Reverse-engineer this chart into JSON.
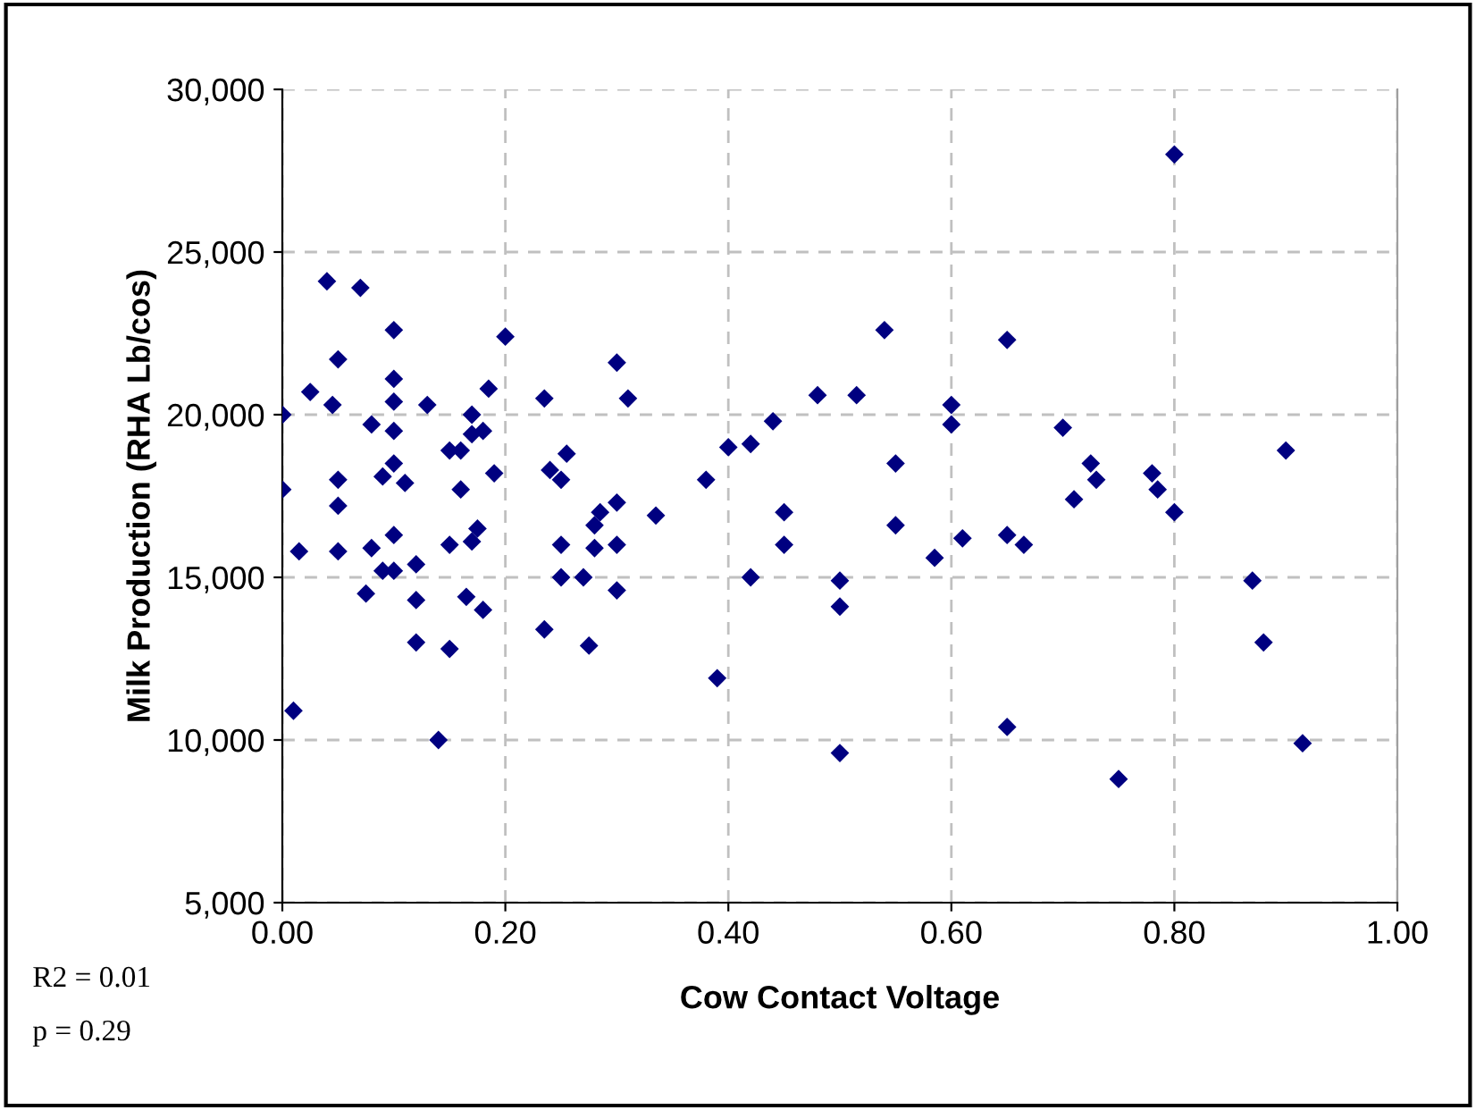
{
  "chart_data": {
    "type": "scatter",
    "xlabel": "Cow Contact Voltage",
    "ylabel": "Milk Production (RHA Lb/cos)",
    "annotations": [
      "R2 = 0.01",
      "p = 0.29"
    ],
    "marker": "diamond",
    "grid": true,
    "legend": false,
    "xlim": [
      0,
      1
    ],
    "ylim": [
      5000,
      30000
    ],
    "xticks": [
      {
        "value": 0,
        "label": "0.00"
      },
      {
        "value": 0.2,
        "label": "0.20"
      },
      {
        "value": 0.4,
        "label": "0.40"
      },
      {
        "value": 0.6,
        "label": "0.60"
      },
      {
        "value": 0.8,
        "label": "0.80"
      },
      {
        "value": 1,
        "label": "1.00"
      }
    ],
    "yticks": [
      {
        "value": 5000,
        "label": "5,000"
      },
      {
        "value": 10000,
        "label": "10,000"
      },
      {
        "value": 15000,
        "label": "15,000"
      },
      {
        "value": 20000,
        "label": "20,000"
      },
      {
        "value": 25000,
        "label": "25,000"
      },
      {
        "value": 30000,
        "label": "30,000"
      }
    ],
    "series": [
      {
        "color": "#000080",
        "x": [
          0.0,
          0.0,
          0.01,
          0.015,
          0.025,
          0.04,
          0.045,
          0.05,
          0.05,
          0.05,
          0.05,
          0.07,
          0.075,
          0.08,
          0.08,
          0.09,
          0.09,
          0.1,
          0.1,
          0.1,
          0.1,
          0.1,
          0.1,
          0.1,
          0.11,
          0.12,
          0.12,
          0.12,
          0.13,
          0.14,
          0.15,
          0.15,
          0.15,
          0.16,
          0.16,
          0.165,
          0.17,
          0.17,
          0.17,
          0.175,
          0.18,
          0.18,
          0.185,
          0.19,
          0.2,
          0.235,
          0.235,
          0.24,
          0.25,
          0.25,
          0.25,
          0.255,
          0.27,
          0.275,
          0.28,
          0.28,
          0.285,
          0.3,
          0.3,
          0.3,
          0.3,
          0.31,
          0.335,
          0.38,
          0.39,
          0.4,
          0.42,
          0.42,
          0.44,
          0.45,
          0.45,
          0.48,
          0.5,
          0.5,
          0.5,
          0.515,
          0.54,
          0.55,
          0.55,
          0.585,
          0.6,
          0.6,
          0.61,
          0.65,
          0.65,
          0.65,
          0.665,
          0.7,
          0.71,
          0.725,
          0.73,
          0.75,
          0.78,
          0.785,
          0.8,
          0.8,
          0.87,
          0.88,
          0.9,
          0.915
        ],
        "values": [
          20000,
          17700,
          10900,
          15800,
          20700,
          24100,
          20300,
          21700,
          18000,
          17200,
          15800,
          23900,
          14500,
          19700,
          15900,
          18100,
          15200,
          22600,
          21100,
          20400,
          19500,
          18500,
          16300,
          15200,
          17900,
          15400,
          13000,
          14300,
          20300,
          10000,
          18900,
          16000,
          12800,
          18900,
          17700,
          14400,
          19400,
          20000,
          16100,
          16500,
          19500,
          14000,
          20800,
          18200,
          22400,
          20500,
          13400,
          18300,
          18000,
          16000,
          15000,
          18800,
          15000,
          12900,
          16600,
          15900,
          17000,
          21600,
          17300,
          16000,
          14600,
          20500,
          16900,
          18000,
          11900,
          19000,
          19100,
          15000,
          19800,
          17000,
          16000,
          20600,
          14900,
          14100,
          9600,
          20600,
          22600,
          18500,
          16600,
          15600,
          20300,
          19700,
          16200,
          22300,
          16300,
          10400,
          16000,
          19600,
          17400,
          18500,
          18000,
          8800,
          18200,
          17700,
          28000,
          17000,
          14900,
          13000,
          18900,
          9900
        ]
      }
    ]
  }
}
